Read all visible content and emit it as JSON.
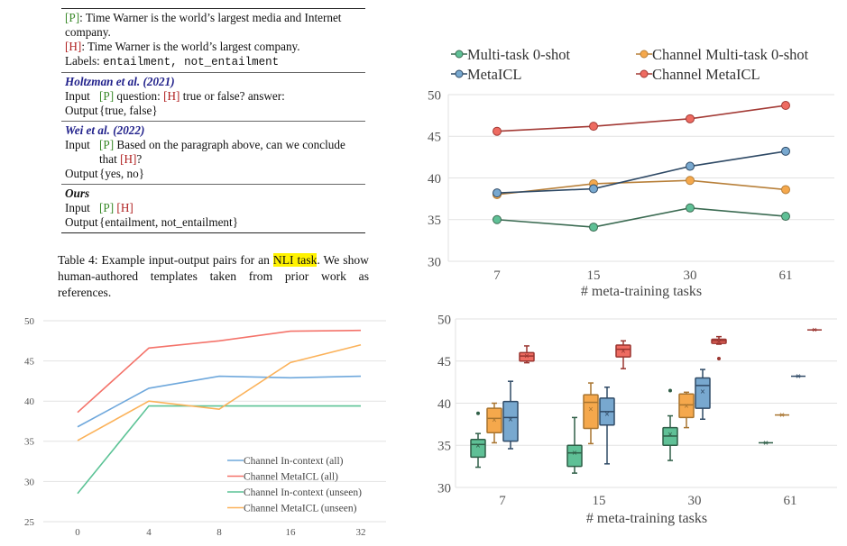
{
  "table": {
    "example": {
      "p_tag": "[P]",
      "p_text": ": Time Warner is the world’s largest media and Internet company.",
      "h_tag": "[H]",
      "h_text": ": Time Warner is the world’s largest company.",
      "labels_label": "Labels: ",
      "labels_value": "entailment, not_entailment"
    },
    "sections": [
      {
        "title": "Holtzman et al. (2021)",
        "input_label": "Input",
        "input_p": "[P]",
        "input_mid": " question: ",
        "input_h": "[H]",
        "input_end": " true or false? answer:",
        "output_label": "Output",
        "output": "{true, false}"
      },
      {
        "title": "Wei et al. (2022)",
        "input_label": "Input",
        "input_p": "[P]",
        "input_mid": " Based on the paragraph above, can we conclude that ",
        "input_h": "[H]",
        "input_end": "?",
        "output_label": "Output",
        "output": "{yes, no}"
      },
      {
        "title": "Ours",
        "input_label": "Input",
        "input_p": "[P]",
        "input_mid": " ",
        "input_h": "[H]",
        "input_end": "",
        "output_label": "Output",
        "output": "{entailment, not_entailment}"
      }
    ]
  },
  "caption": {
    "prefix": "Table 4:  Example input-output pairs for an ",
    "highlight": "NLI task",
    "suffix": ". We show human-authored templates taken from prior work as references."
  },
  "chart_data": [
    {
      "type": "line",
      "xlabel": "# meta-training tasks",
      "ylabel": "",
      "categories": [
        "7",
        "15",
        "30",
        "61"
      ],
      "ylim": [
        30,
        50
      ],
      "yticks": [
        30,
        35,
        40,
        45,
        50
      ],
      "grid": true,
      "legend": "top",
      "series": [
        {
          "name": "Multi-task 0-shot",
          "values": [
            35.0,
            34.1,
            36.4,
            35.4
          ],
          "line": "#3b6b52",
          "marker": "#5fc096"
        },
        {
          "name": "Channel Multi-task 0-shot",
          "values": [
            38.0,
            39.3,
            39.7,
            38.6
          ],
          "line": "#b8803a",
          "marker": "#f5a84c"
        },
        {
          "name": "MetaICL",
          "values": [
            38.2,
            38.7,
            41.4,
            43.2
          ],
          "line": "#2f4a66",
          "marker": "#78a8cf"
        },
        {
          "name": "Channel MetaICL",
          "values": [
            45.6,
            46.2,
            47.1,
            48.7
          ],
          "line": "#a33a35",
          "marker": "#ee6b61"
        }
      ]
    },
    {
      "type": "line",
      "xlabel": "",
      "ylabel": "",
      "categories": [
        "0",
        "4",
        "8",
        "16",
        "32"
      ],
      "ylim": [
        25,
        50
      ],
      "yticks": [
        25,
        30,
        35,
        40,
        45,
        50
      ],
      "grid": true,
      "legend": "bottom-right",
      "series": [
        {
          "name": "Channel In-context (all)",
          "values": [
            36.8,
            41.6,
            43.1,
            42.9,
            43.1
          ],
          "color": "#6fa8dc"
        },
        {
          "name": "Channel MetaICL (all)",
          "values": [
            38.6,
            46.6,
            47.5,
            48.7,
            48.8
          ],
          "color": "#f4736a"
        },
        {
          "name": "Channel In-context (unseen)",
          "values": [
            28.5,
            39.4,
            39.4,
            39.4,
            39.4
          ],
          "color": "#5cc396"
        },
        {
          "name": "Channel MetaICL (unseen)",
          "values": [
            35.1,
            40.0,
            39.0,
            44.8,
            47.0
          ],
          "color": "#fbb25a"
        }
      ]
    },
    {
      "type": "box",
      "xlabel": "# meta-training tasks",
      "ylabel": "",
      "categories": [
        "7",
        "15",
        "30",
        "61"
      ],
      "ylim": [
        30,
        50
      ],
      "yticks": [
        30,
        35,
        40,
        45,
        50
      ],
      "grid": true,
      "series": [
        {
          "fill": "#5fc096",
          "edge": "#2f5e47",
          "boxes": [
            [
              32.4,
              33.6,
              35.1,
              35.7,
              36.4,
              35.0,
              [
                38.8
              ]
            ],
            [
              31.7,
              32.5,
              34.1,
              35.0,
              38.3,
              34.1,
              []
            ],
            [
              33.2,
              35.0,
              36.1,
              37.1,
              38.5,
              36.3,
              [
                41.5
              ]
            ],
            [
              35.3,
              35.3,
              35.3,
              35.3,
              35.3,
              35.3,
              []
            ]
          ]
        },
        {
          "fill": "#f5a84c",
          "edge": "#a8742f",
          "boxes": [
            [
              35.3,
              36.5,
              38.2,
              39.4,
              40.0,
              38.0,
              []
            ],
            [
              35.2,
              37.0,
              40.1,
              41.0,
              42.4,
              39.3,
              []
            ],
            [
              37.1,
              38.3,
              39.8,
              41.1,
              41.3,
              39.7,
              []
            ],
            [
              38.6,
              38.6,
              38.6,
              38.6,
              38.6,
              38.6,
              []
            ]
          ]
        },
        {
          "fill": "#78a8cf",
          "edge": "#2f4a66",
          "boxes": [
            [
              34.6,
              35.5,
              38.3,
              40.2,
              42.6,
              38.1,
              []
            ],
            [
              32.8,
              37.4,
              39.0,
              40.6,
              41.9,
              38.7,
              []
            ],
            [
              38.1,
              39.4,
              42.1,
              43.0,
              44.0,
              41.4,
              []
            ],
            [
              43.2,
              43.2,
              43.2,
              43.2,
              43.2,
              43.2,
              []
            ]
          ]
        },
        {
          "fill": "#ee6b61",
          "edge": "#9a3530",
          "boxes": [
            [
              44.8,
              45.0,
              45.6,
              46.0,
              46.8,
              45.6,
              []
            ],
            [
              44.1,
              45.5,
              46.4,
              46.9,
              47.4,
              46.2,
              []
            ],
            [
              47.0,
              47.1,
              47.4,
              47.6,
              47.9,
              47.3,
              [
                45.3
              ]
            ],
            [
              48.7,
              48.7,
              48.7,
              48.7,
              48.7,
              48.7,
              []
            ]
          ]
        }
      ]
    }
  ]
}
